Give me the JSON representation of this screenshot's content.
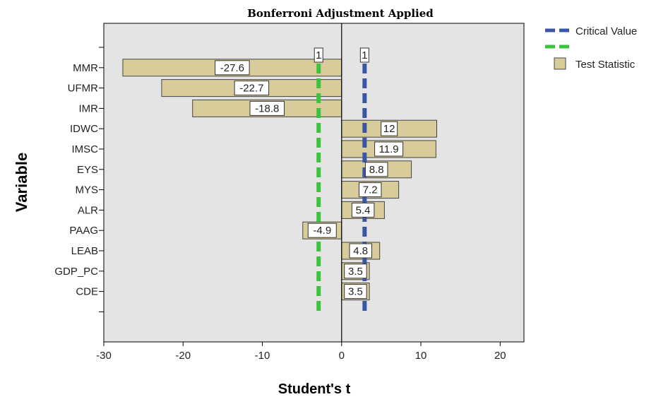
{
  "chart_data": {
    "type": "bar",
    "orientation": "horizontal",
    "title": "Bonferroni Adjustment Applied",
    "xlabel": "Student's t",
    "ylabel": "Variable",
    "xlim": [
      -30,
      23
    ],
    "xticks": [
      -30,
      -20,
      -10,
      0,
      10,
      20
    ],
    "categories": [
      "MMR",
      "UFMR",
      "IMR",
      "IDWC",
      "IMSC",
      "EYS",
      "MYS",
      "ALR",
      "PAAG",
      "LEAB",
      "GDP_PC",
      "CDE"
    ],
    "series": [
      {
        "name": "Test Statistic",
        "values": [
          -27.6,
          -22.7,
          -18.8,
          12,
          11.9,
          8.8,
          7.2,
          5.4,
          -4.9,
          4.8,
          3.5,
          3.5
        ],
        "labels": [
          "-27.6",
          "-22.7",
          "-18.8",
          "12",
          "11.9",
          "8.8",
          "7.2",
          "5.4",
          "-4.9",
          "4.8",
          "3.5",
          "3.5"
        ],
        "color": "#d8cc9a"
      }
    ],
    "reference_lines": [
      {
        "name": "Critical Value",
        "x": 2.9,
        "color": "#3a55a6",
        "label": "1",
        "style": "dashed"
      },
      {
        "name": "Critical Value (negative)",
        "x": -2.9,
        "color": "#3cc23c",
        "label": "1",
        "style": "dashed"
      }
    ],
    "legend": {
      "position": "right",
      "items": [
        {
          "label": "Critical Value",
          "color": "#3a55a6"
        },
        {
          "label": "Test Statistic",
          "color": "#d8cc9a"
        }
      ]
    },
    "plot_background": "#e4e4e4",
    "grid": false
  }
}
